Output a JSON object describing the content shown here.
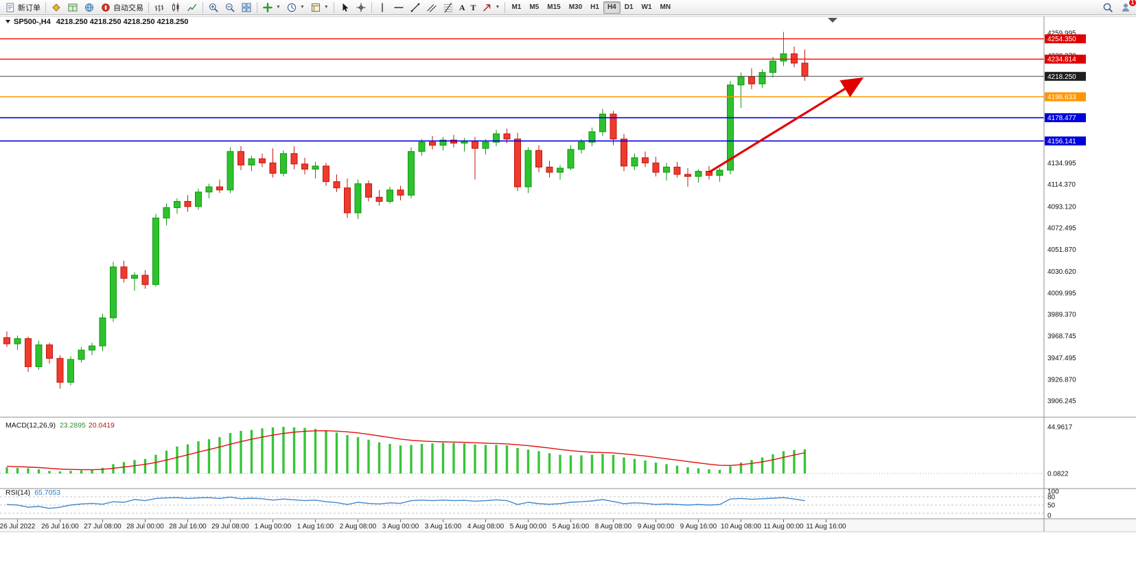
{
  "toolbar": {
    "groups": [
      {
        "items": [
          {
            "name": "new-order-button",
            "icon": "doc",
            "label": "新订单"
          }
        ]
      },
      {
        "items": [
          {
            "name": "signals-button",
            "icon": "diamond"
          },
          {
            "name": "market-watch-button",
            "icon": "gridwin"
          },
          {
            "name": "community-button",
            "icon": "globe"
          },
          {
            "name": "autotrading-button",
            "icon": "reddot",
            "label": "自动交易"
          }
        ]
      },
      {
        "items": [
          {
            "name": "chart-bars-button",
            "icon": "bars"
          },
          {
            "name": "chart-candles-button",
            "icon": "candles"
          },
          {
            "name": "chart-line-button",
            "icon": "linechart"
          }
        ]
      },
      {
        "items": [
          {
            "name": "zoom-in-button",
            "icon": "zoomin"
          },
          {
            "name": "zoom-out-button",
            "icon": "zoomout"
          },
          {
            "name": "tile-windows-button",
            "icon": "tile"
          }
        ]
      },
      {
        "items": [
          {
            "name": "indicators-button",
            "icon": "plusgreen",
            "dropdown": true
          },
          {
            "name": "periods-button",
            "icon": "clock",
            "dropdown": true
          },
          {
            "name": "templates-button",
            "icon": "template",
            "dropdown": true
          }
        ]
      },
      {
        "items": [
          {
            "name": "cursor-button",
            "icon": "cursor"
          },
          {
            "name": "crosshair-button",
            "icon": "crosshair"
          }
        ]
      },
      {
        "items": [
          {
            "name": "vertical-line-button",
            "icon": "vline"
          },
          {
            "name": "horizontal-line-button",
            "icon": "hline"
          },
          {
            "name": "trendline-button",
            "icon": "trendline"
          },
          {
            "name": "equidistant-channel-button",
            "icon": "channel"
          },
          {
            "name": "fibonacci-button",
            "icon": "fibo"
          },
          {
            "name": "text-tool-button",
            "char": "A"
          },
          {
            "name": "label-tool-button",
            "char": "T"
          },
          {
            "name": "arrows-button",
            "icon": "arrowsym",
            "dropdown": true
          }
        ]
      }
    ],
    "timeframes": [
      "M1",
      "M5",
      "M15",
      "M30",
      "H1",
      "H4",
      "D1",
      "W1",
      "MN"
    ],
    "active_timeframe": "H4",
    "right": [
      {
        "name": "search-button",
        "icon": "search"
      },
      {
        "name": "account-button",
        "icon": "user",
        "badge": "1"
      }
    ]
  },
  "chart": {
    "symbol_title": "SP500-,H4",
    "ohlc_text": "4218.250 4218.250 4218.250 4218.250",
    "price_axis_labels": [
      "4259.995",
      "4238.370",
      "4134.995",
      "4114.370",
      "4093.120",
      "4072.495",
      "4051.870",
      "4030.620",
      "4009.995",
      "3989.370",
      "3968.745",
      "3947.495",
      "3926.870",
      "3906.245"
    ],
    "price_badges": [
      {
        "text": "4254.350",
        "v": 4254.35,
        "bg": "#e00000",
        "fg": "#ffffff"
      },
      {
        "text": "4234.814",
        "v": 4234.814,
        "bg": "#e00000",
        "fg": "#ffffff"
      },
      {
        "text": "4218.250",
        "v": 4218.25,
        "bg": "#1f1f1f",
        "fg": "#ffffff"
      },
      {
        "text": "4198.633",
        "v": 4198.633,
        "bg": "#ff9500",
        "fg": "#ffffff"
      },
      {
        "text": "4178.477",
        "v": 4178.477,
        "bg": "#0000dd",
        "fg": "#ffffff"
      },
      {
        "text": "4156.141",
        "v": 4156.141,
        "bg": "#0000dd",
        "fg": "#ffffff"
      }
    ],
    "hlines": [
      {
        "v": 4254.35,
        "color": "#ff0000",
        "w": 1.4
      },
      {
        "v": 4234.814,
        "color": "#ff0000",
        "w": 1.4
      },
      {
        "v": 4218.25,
        "color": "#444444",
        "w": 1
      },
      {
        "v": 4198.633,
        "color": "#ff9500",
        "w": 1.6
      },
      {
        "v": 4178.477,
        "color": "#0000e0",
        "w": 1.6
      },
      {
        "v": 4156.141,
        "color": "#0000e0",
        "w": 1.6
      }
    ],
    "trend_arrow": {
      "from_bar": 66,
      "from_price": 4126,
      "to_bar": 80,
      "to_price": 4214,
      "color": "#e00000"
    },
    "candles": [
      [
        3967,
        3973,
        3958,
        3961
      ],
      [
        3961,
        3969,
        3955,
        3966
      ],
      [
        3966,
        3968,
        3934,
        3939
      ],
      [
        3939,
        3964,
        3936,
        3960
      ],
      [
        3960,
        3962,
        3942,
        3947
      ],
      [
        3947,
        3950,
        3918,
        3924
      ],
      [
        3924,
        3949,
        3921,
        3946
      ],
      [
        3946,
        3958,
        3943,
        3955
      ],
      [
        3955,
        3962,
        3950,
        3959
      ],
      [
        3959,
        3990,
        3954,
        3986
      ],
      [
        3986,
        4040,
        3982,
        4035
      ],
      [
        4035,
        4041,
        4020,
        4024
      ],
      [
        4024,
        4030,
        4012,
        4027
      ],
      [
        4027,
        4032,
        4014,
        4018
      ],
      [
        4018,
        4086,
        4016,
        4082
      ],
      [
        4082,
        4096,
        4075,
        4092
      ],
      [
        4092,
        4101,
        4086,
        4098
      ],
      [
        4098,
        4104,
        4088,
        4093
      ],
      [
        4093,
        4110,
        4090,
        4107
      ],
      [
        4107,
        4115,
        4101,
        4112
      ],
      [
        4112,
        4119,
        4106,
        4109
      ],
      [
        4109,
        4150,
        4106,
        4146
      ],
      [
        4146,
        4151,
        4128,
        4133
      ],
      [
        4133,
        4142,
        4127,
        4139
      ],
      [
        4139,
        4144,
        4131,
        4135
      ],
      [
        4135,
        4149,
        4121,
        4125
      ],
      [
        4125,
        4147,
        4122,
        4144
      ],
      [
        4144,
        4151,
        4129,
        4134
      ],
      [
        4134,
        4140,
        4124,
        4129
      ],
      [
        4129,
        4136,
        4120,
        4132
      ],
      [
        4132,
        4135,
        4113,
        4117
      ],
      [
        4117,
        4124,
        4107,
        4111
      ],
      [
        4111,
        4120,
        4082,
        4087
      ],
      [
        4087,
        4119,
        4081,
        4115
      ],
      [
        4115,
        4118,
        4098,
        4102
      ],
      [
        4102,
        4109,
        4094,
        4098
      ],
      [
        4098,
        4112,
        4096,
        4109
      ],
      [
        4109,
        4113,
        4099,
        4104
      ],
      [
        4104,
        4150,
        4101,
        4146
      ],
      [
        4146,
        4158,
        4142,
        4155
      ],
      [
        4155,
        4161,
        4148,
        4152
      ],
      [
        4152,
        4160,
        4147,
        4157
      ],
      [
        4157,
        4162,
        4150,
        4154
      ],
      [
        4154,
        4159,
        4146,
        4156
      ],
      [
        4156,
        4160,
        4119,
        4149
      ],
      [
        4149,
        4158,
        4143,
        4155
      ],
      [
        4155,
        4167,
        4151,
        4163
      ],
      [
        4163,
        4168,
        4154,
        4158
      ],
      [
        4158,
        4164,
        4108,
        4112
      ],
      [
        4112,
        4150,
        4106,
        4147
      ],
      [
        4147,
        4152,
        4126,
        4131
      ],
      [
        4131,
        4137,
        4121,
        4126
      ],
      [
        4126,
        4133,
        4119,
        4130
      ],
      [
        4130,
        4152,
        4128,
        4148
      ],
      [
        4148,
        4158,
        4144,
        4155
      ],
      [
        4155,
        4169,
        4151,
        4165
      ],
      [
        4165,
        4187,
        4161,
        4182
      ],
      [
        4182,
        4185,
        4152,
        4158
      ],
      [
        4158,
        4163,
        4127,
        4132
      ],
      [
        4132,
        4144,
        4128,
        4140
      ],
      [
        4140,
        4146,
        4131,
        4135
      ],
      [
        4135,
        4141,
        4122,
        4126
      ],
      [
        4126,
        4135,
        4118,
        4131
      ],
      [
        4131,
        4136,
        4121,
        4124
      ],
      [
        4124,
        4130,
        4112,
        4122
      ],
      [
        4122,
        4129,
        4116,
        4127
      ],
      [
        4127,
        4132,
        4119,
        4123
      ],
      [
        4123,
        4130,
        4117,
        4128
      ],
      [
        4128,
        4214,
        4124,
        4210
      ],
      [
        4210,
        4222,
        4188,
        4218
      ],
      [
        4218,
        4226,
        4206,
        4211
      ],
      [
        4211,
        4225,
        4207,
        4222
      ],
      [
        4222,
        4237,
        4217,
        4233
      ],
      [
        4233,
        4261,
        4228,
        4240
      ],
      [
        4240,
        4247,
        4227,
        4231
      ],
      [
        4231,
        4244,
        4214,
        4218.25
      ]
    ]
  },
  "macd": {
    "name": "MACD(12,26,9)",
    "main_value": "23.2895",
    "signal_value": "20.0419",
    "scale_labels": [
      {
        "t": "44.9617",
        "v": 44.9617
      },
      {
        "t": "0.0822",
        "v": 0.0822
      }
    ],
    "hist": [
      6,
      5.5,
      5,
      4,
      2.5,
      2,
      2.5,
      3,
      3.5,
      5.5,
      9,
      11,
      13,
      14,
      18,
      22,
      26,
      28,
      31,
      33,
      35,
      39,
      41,
      42,
      43.5,
      44.5,
      45,
      44.5,
      44,
      43,
      41.5,
      39.5,
      37,
      35,
      32.5,
      30,
      28.5,
      27,
      27.5,
      28.5,
      29,
      29.5,
      29.5,
      29,
      28,
      27.5,
      27.5,
      27,
      24.5,
      23,
      21.5,
      19.5,
      18,
      17.5,
      17.5,
      18,
      19,
      18,
      15.5,
      14,
      12.5,
      10.5,
      9,
      7.5,
      6,
      5,
      4,
      3.5,
      7,
      10.5,
      13,
      15.5,
      18.5,
      21.5,
      22.5,
      23.3
    ],
    "signal": [
      7,
      6.6,
      6.2,
      5.7,
      5,
      4.3,
      3.9,
      3.7,
      3.6,
      4,
      5,
      6.2,
      7.5,
      8.8,
      10.6,
      12.9,
      15.5,
      18,
      20.6,
      23.1,
      25.5,
      28.2,
      30.7,
      33,
      35.1,
      37,
      38.6,
      39.8,
      40.6,
      41.1,
      41.2,
      40.8,
      40.1,
      39.1,
      37.7,
      36.2,
      34.7,
      33.1,
      32,
      31.3,
      30.8,
      30.5,
      30.3,
      30,
      29.6,
      29.2,
      28.9,
      28.5,
      27.7,
      26.8,
      25.7,
      24.5,
      23.2,
      22,
      21.1,
      20.5,
      20.2,
      19.8,
      18.9,
      17.9,
      16.8,
      15.5,
      14.2,
      12.9,
      11.5,
      10.2,
      9,
      7.9,
      7.7,
      8.5,
      9.7,
      11.2,
      13.2,
      15.5,
      17.8,
      20
    ]
  },
  "rsi": {
    "name": "RSI(14)",
    "value": "65.7053",
    "scale_labels": [
      {
        "t": "100",
        "v": 100
      },
      {
        "t": "80",
        "v": 80
      },
      {
        "t": "50",
        "v": 50
      },
      {
        "t": "0",
        "v": 0
      }
    ],
    "dashed_levels": [
      80,
      50,
      20
    ],
    "series": [
      52,
      50,
      42,
      45,
      38,
      42,
      50,
      54,
      56,
      53,
      62,
      60,
      70,
      66,
      74,
      76,
      77,
      74,
      76,
      77,
      74,
      79,
      73,
      75,
      73,
      68,
      72,
      69,
      66,
      68,
      62,
      59,
      52,
      60,
      56,
      54,
      58,
      56,
      66,
      68,
      66,
      68,
      66,
      67,
      64,
      66,
      69,
      66,
      52,
      60,
      55,
      53,
      55,
      60,
      62,
      65,
      70,
      63,
      55,
      58,
      56,
      52,
      54,
      52,
      50,
      52,
      50,
      52,
      72,
      74,
      71,
      73,
      75,
      77,
      72,
      65.7
    ]
  },
  "time_axis": {
    "labels": [
      "26 Jul 2022",
      "26 Jul 16:00",
      "27 Jul 08:00",
      "28 Jul 00:00",
      "28 Jul 16:00",
      "29 Jul 08:00",
      "1 Aug 00:00",
      "1 Aug 16:00",
      "2 Aug 08:00",
      "3 Aug 00:00",
      "3 Aug 16:00",
      "4 Aug 08:00",
      "5 Aug 00:00",
      "5 Aug 16:00",
      "8 Aug 08:00",
      "9 Aug 00:00",
      "9 Aug 16:00",
      "10 Aug 08:00",
      "11 Aug 00:00",
      "11 Aug 16:00"
    ]
  }
}
